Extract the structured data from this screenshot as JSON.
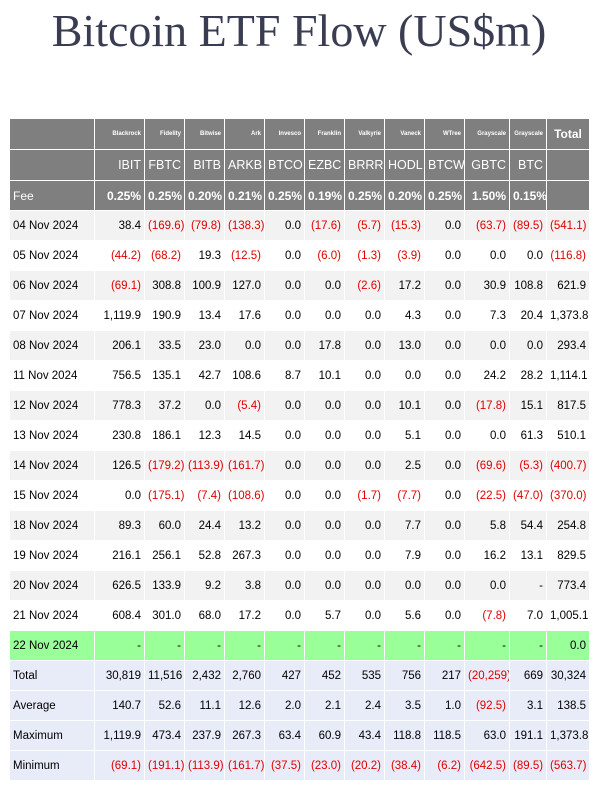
{
  "title": "Bitcoin ETF Flow (US$m)",
  "issuers": [
    "Blackrock",
    "Fidelity",
    "Bitwise",
    "Ark",
    "Invesco",
    "Franklin",
    "Valkyrie",
    "Vaneck",
    "WTree",
    "Grayscale",
    "Grayscale"
  ],
  "total_header": "Total",
  "tickers": [
    "IBIT",
    "FBTC",
    "BITB",
    "ARKB",
    "BTCO",
    "EZBC",
    "BRRR",
    "HODL",
    "BTCW",
    "GBTC",
    "BTC"
  ],
  "fee_label": "Fee",
  "fees": [
    "0.25%",
    "0.25%",
    "0.20%",
    "0.21%",
    "0.25%",
    "0.19%",
    "0.25%",
    "0.20%",
    "0.25%",
    "1.50%",
    "0.15%"
  ],
  "rows": [
    {
      "date": "04 Nov 2024",
      "values": [
        "38.4",
        "(169.6)",
        "(79.8)",
        "(138.3)",
        "0.0",
        "(17.6)",
        "(5.7)",
        "(15.3)",
        "0.0",
        "(63.7)",
        "(89.5)",
        "(541.1)"
      ]
    },
    {
      "date": "05 Nov 2024",
      "values": [
        "(44.2)",
        "(68.2)",
        "19.3",
        "(12.5)",
        "0.0",
        "(6.0)",
        "(1.3)",
        "(3.9)",
        "0.0",
        "0.0",
        "0.0",
        "(116.8)"
      ]
    },
    {
      "date": "06 Nov 2024",
      "values": [
        "(69.1)",
        "308.8",
        "100.9",
        "127.0",
        "0.0",
        "0.0",
        "(2.6)",
        "17.2",
        "0.0",
        "30.9",
        "108.8",
        "621.9"
      ]
    },
    {
      "date": "07 Nov 2024",
      "values": [
        "1,119.9",
        "190.9",
        "13.4",
        "17.6",
        "0.0",
        "0.0",
        "0.0",
        "4.3",
        "0.0",
        "7.3",
        "20.4",
        "1,373.8"
      ]
    },
    {
      "date": "08 Nov 2024",
      "values": [
        "206.1",
        "33.5",
        "23.0",
        "0.0",
        "0.0",
        "17.8",
        "0.0",
        "13.0",
        "0.0",
        "0.0",
        "0.0",
        "293.4"
      ]
    },
    {
      "date": "11 Nov 2024",
      "values": [
        "756.5",
        "135.1",
        "42.7",
        "108.6",
        "8.7",
        "10.1",
        "0.0",
        "0.0",
        "0.0",
        "24.2",
        "28.2",
        "1,114.1"
      ]
    },
    {
      "date": "12 Nov 2024",
      "values": [
        "778.3",
        "37.2",
        "0.0",
        "(5.4)",
        "0.0",
        "0.0",
        "0.0",
        "10.1",
        "0.0",
        "(17.8)",
        "15.1",
        "817.5"
      ]
    },
    {
      "date": "13 Nov 2024",
      "values": [
        "230.8",
        "186.1",
        "12.3",
        "14.5",
        "0.0",
        "0.0",
        "0.0",
        "5.1",
        "0.0",
        "0.0",
        "61.3",
        "510.1"
      ]
    },
    {
      "date": "14 Nov 2024",
      "values": [
        "126.5",
        "(179.2)",
        "(113.9)",
        "(161.7)",
        "0.0",
        "0.0",
        "0.0",
        "2.5",
        "0.0",
        "(69.6)",
        "(5.3)",
        "(400.7)"
      ]
    },
    {
      "date": "15 Nov 2024",
      "values": [
        "0.0",
        "(175.1)",
        "(7.4)",
        "(108.6)",
        "0.0",
        "0.0",
        "(1.7)",
        "(7.7)",
        "0.0",
        "(22.5)",
        "(47.0)",
        "(370.0)"
      ]
    },
    {
      "date": "18 Nov 2024",
      "values": [
        "89.3",
        "60.0",
        "24.4",
        "13.2",
        "0.0",
        "0.0",
        "0.0",
        "7.7",
        "0.0",
        "5.8",
        "54.4",
        "254.8"
      ]
    },
    {
      "date": "19 Nov 2024",
      "values": [
        "216.1",
        "256.1",
        "52.8",
        "267.3",
        "0.0",
        "0.0",
        "0.0",
        "7.9",
        "0.0",
        "16.2",
        "13.1",
        "829.5"
      ]
    },
    {
      "date": "20 Nov 2024",
      "values": [
        "626.5",
        "133.9",
        "9.2",
        "3.8",
        "0.0",
        "0.0",
        "0.0",
        "0.0",
        "0.0",
        "0.0",
        "-",
        "773.4"
      ]
    },
    {
      "date": "21 Nov 2024",
      "values": [
        "608.4",
        "301.0",
        "68.0",
        "17.2",
        "0.0",
        "5.7",
        "0.0",
        "5.6",
        "0.0",
        "(7.8)",
        "7.0",
        "1,005.1"
      ]
    },
    {
      "date": "22 Nov 2024",
      "highlight": true,
      "values": [
        "-",
        "-",
        "-",
        "-",
        "-",
        "-",
        "-",
        "-",
        "-",
        "-",
        "-",
        "0.0"
      ]
    }
  ],
  "stats": [
    {
      "label": "Total",
      "values": [
        "30,819",
        "11,516",
        "2,432",
        "2,760",
        "427",
        "452",
        "535",
        "756",
        "217",
        "(20,259)",
        "669",
        "30,324"
      ]
    },
    {
      "label": "Average",
      "values": [
        "140.7",
        "52.6",
        "11.1",
        "12.6",
        "2.0",
        "2.1",
        "2.4",
        "3.5",
        "1.0",
        "(92.5)",
        "3.1",
        "138.5"
      ]
    },
    {
      "label": "Maximum",
      "values": [
        "1,119.9",
        "473.4",
        "237.9",
        "267.3",
        "63.4",
        "60.9",
        "43.4",
        "118.8",
        "118.5",
        "63.0",
        "191.1",
        "1,373.8"
      ]
    },
    {
      "label": "Minimum",
      "values": [
        "(69.1)",
        "(191.1)",
        "(113.9)",
        "(161.7)",
        "(37.5)",
        "(23.0)",
        "(20.2)",
        "(38.4)",
        "(6.2)",
        "(642.5)",
        "(89.5)",
        "(563.7)"
      ]
    }
  ],
  "colors": {
    "header_bg": "#7f7f7f",
    "negative": "#e00000",
    "highlight_row": "#99ff99",
    "stats_bg": "#e8ecf8",
    "title": "#3a3d52"
  }
}
